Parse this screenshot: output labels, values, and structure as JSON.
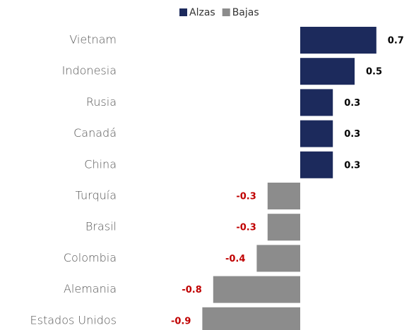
{
  "chart_data": {
    "type": "diverging_bar",
    "categories": [
      "Vietnam",
      "Indonesia",
      "Rusia",
      "Canadá",
      "China",
      "Turquía",
      "Brasil",
      "Colombia",
      "Alemania",
      "Estados Unidos"
    ],
    "series": [
      {
        "name": "Alzas",
        "color": "#1c2a5c",
        "label_color": "#000000",
        "values": [
          0.7,
          0.5,
          0.3,
          0.3,
          0.3,
          null,
          null,
          null,
          null,
          null
        ]
      },
      {
        "name": "Bajas",
        "color": "#8c8c8c",
        "label_color": "#c00000",
        "values": [
          null,
          null,
          null,
          null,
          null,
          -0.3,
          -0.3,
          -0.4,
          -0.8,
          -0.9
        ]
      }
    ],
    "legend": "top"
  }
}
